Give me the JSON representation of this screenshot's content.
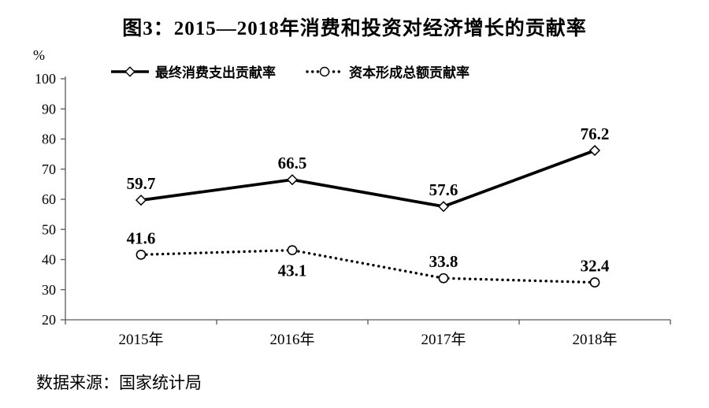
{
  "page": {
    "title": "图3：2015—2018年消费和投资对经济增长的贡献率",
    "source": "数据来源：国家统计局"
  },
  "chart_data": {
    "type": "line",
    "title": "图3：2015—2018年消费和投资对经济增长的贡献率",
    "categories": [
      "2015年",
      "2016年",
      "2017年",
      "2018年"
    ],
    "series": [
      {
        "name": "最终消费支出贡献率",
        "values": [
          59.7,
          66.5,
          57.6,
          76.2
        ],
        "line_style": "solid",
        "marker": "diamond",
        "label_position": [
          "above",
          "above",
          "above",
          "above"
        ]
      },
      {
        "name": "资本形成总额贡献率",
        "values": [
          41.6,
          43.1,
          33.8,
          32.4
        ],
        "line_style": "dotted",
        "marker": "circle",
        "label_position": [
          "above",
          "below",
          "above",
          "above"
        ]
      }
    ],
    "y_axis": {
      "unit": "%",
      "min": 20,
      "max": 100,
      "step": 10,
      "ticks": [
        100,
        90,
        80,
        70,
        60,
        50,
        40,
        30,
        20
      ]
    },
    "legend_position": "top",
    "grid": false,
    "colors": {
      "series": "#000000",
      "axis": "#595959",
      "text": "#000000",
      "background": "#ffffff"
    }
  }
}
